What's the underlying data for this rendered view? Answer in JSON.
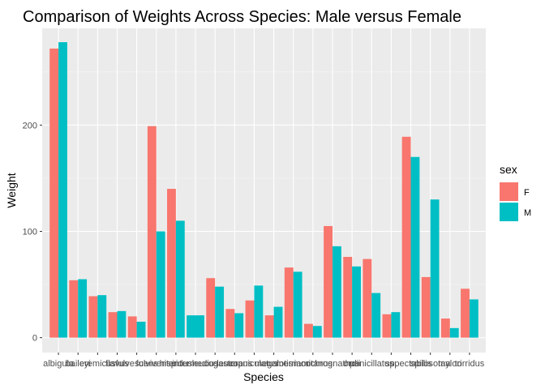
{
  "chart_data": {
    "type": "bar",
    "title": "Comparison of Weights Across Species: Male versus Female",
    "xlabel": "Species",
    "ylabel": "Weight",
    "categories": [
      "albigula",
      "baileyi",
      "eremicus",
      "flavus",
      "fulvescens",
      "fulviventer",
      "hispidus",
      "intermedius",
      "leucogaster",
      "leucopus",
      "maniculatus",
      "megalotis",
      "merriami",
      "montanus",
      "ochrognathus",
      "ordii",
      "penicillatus",
      "sp.",
      "spectabilis",
      "spilosoma",
      "taylori",
      "torridus"
    ],
    "series": [
      {
        "name": "F",
        "color": "#F8766D",
        "values": [
          272,
          54,
          39,
          24,
          20,
          199,
          140,
          null,
          56,
          27,
          35,
          21,
          66,
          13,
          105,
          76,
          74,
          22,
          189,
          57,
          18,
          46
        ]
      },
      {
        "name": "M",
        "color": "#00BFC4",
        "values": [
          278,
          55,
          40,
          25,
          15,
          100,
          110,
          21,
          48,
          23,
          49,
          29,
          62,
          11,
          86,
          67,
          42,
          24,
          170,
          130,
          9,
          36
        ]
      }
    ],
    "yticks": [
      0,
      100,
      200
    ],
    "ylim": [
      -14,
      291
    ],
    "legend": {
      "title": "sex",
      "position": "right"
    },
    "grid": true
  }
}
